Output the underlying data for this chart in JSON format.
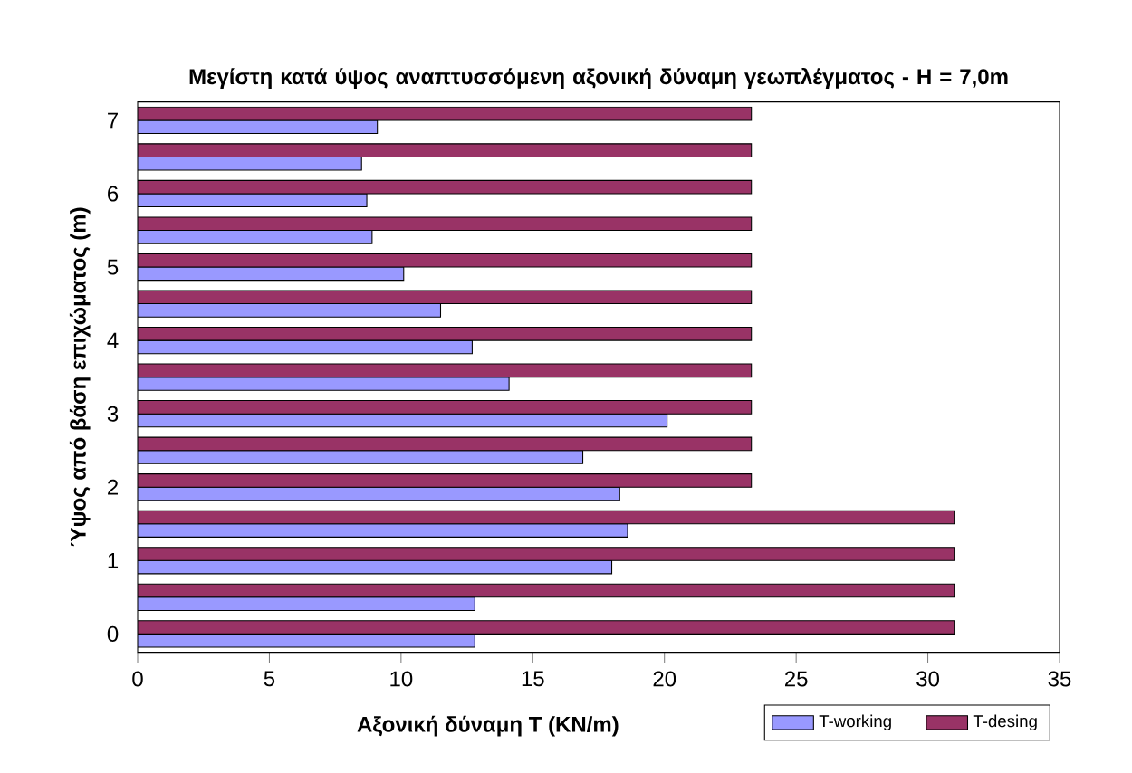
{
  "chart_data": {
    "type": "bar",
    "orientation": "horizontal",
    "title": "Μεγίστη κατά ύψος αναπτυσσόμενη αξονική δύναμη γεωπλέγματος - H = 7,0m",
    "xlabel": "Αξονική δύναμη Τ (KN/m)",
    "ylabel": "Ύψος από βάση επιχώματος (m)",
    "categories": [
      "7",
      null,
      "6",
      null,
      "5",
      null,
      "4",
      null,
      "3",
      null,
      "2",
      null,
      "1",
      null,
      "0"
    ],
    "series": [
      {
        "name": "T-working",
        "color": "#9999ff",
        "values": [
          9.1,
          8.5,
          8.7,
          8.9,
          10.1,
          11.5,
          12.7,
          14.1,
          20.1,
          16.9,
          18.3,
          18.6,
          18.0,
          12.8,
          12.8
        ]
      },
      {
        "name": "T-desing",
        "color": "#993366",
        "values": [
          23.3,
          23.3,
          23.3,
          23.3,
          23.3,
          23.3,
          23.3,
          23.3,
          23.3,
          23.3,
          23.3,
          31.0,
          31.0,
          31.0,
          31.0
        ]
      }
    ],
    "xlim": [
      0,
      35
    ],
    "xticks": [
      0,
      5,
      10,
      15,
      20,
      25,
      30,
      35
    ],
    "grid": false,
    "legend": "bottom right"
  }
}
